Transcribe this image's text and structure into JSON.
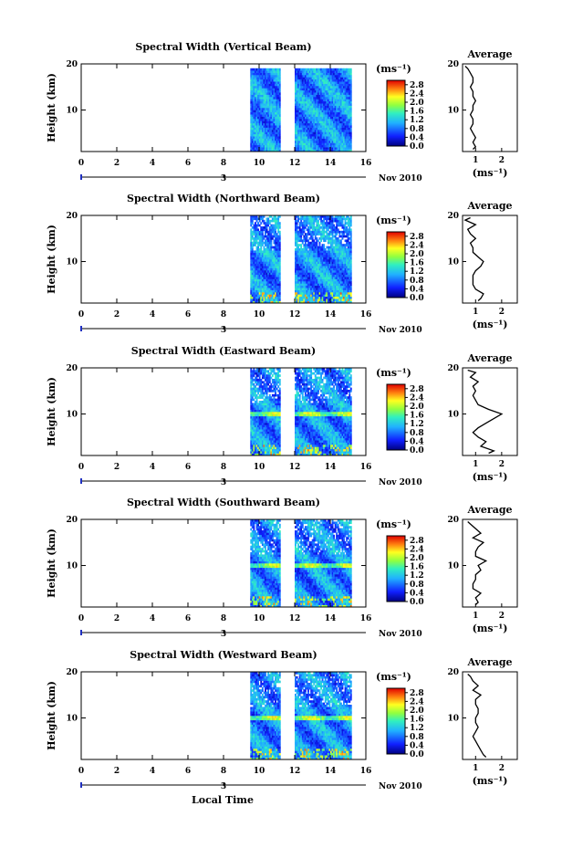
{
  "figure": {
    "xlabel": "Local Time",
    "date_label": "Nov 2010",
    "date_tick_label": "3",
    "colorbar_unit": "(ms⁻¹)",
    "avg_title": "Average",
    "avg_xlabel": "(ms⁻¹)",
    "ylabel": "Height (km)"
  },
  "chart_data": [
    {
      "type": "heatmap",
      "title": "Spectral Width (Vertical Beam)",
      "xlabel": "Local Time",
      "ylabel": "Height (km)",
      "x_ticks": [
        "0",
        "2",
        "4",
        "6",
        "8",
        "10",
        "12",
        "14",
        "16"
      ],
      "y_ticks": [
        "10",
        "20"
      ],
      "xlim": [
        0,
        16
      ],
      "ylim": [
        1,
        20
      ],
      "data_time_ranges": [
        [
          9.5,
          11.2
        ],
        [
          12.0,
          15.2
        ]
      ],
      "colorbar": {
        "ticks": [
          "0.0",
          "0.4",
          "0.8",
          "1.2",
          "1.6",
          "2.0",
          "2.4",
          "2.8"
        ],
        "range": [
          0,
          3.0
        ]
      },
      "average_profile": {
        "title": "Average",
        "xlabel": "(ms⁻¹)",
        "x_ticks": [
          "1",
          "2"
        ],
        "y_ticks": [
          "10",
          "20"
        ],
        "xlim": [
          0.5,
          2.6
        ],
        "heights": [
          1.5,
          2,
          3,
          4,
          5,
          6,
          7,
          8,
          9,
          10,
          11,
          12,
          13,
          14,
          15,
          16,
          17,
          18,
          19,
          19.5
        ],
        "values": [
          0.9,
          1.0,
          0.9,
          1.0,
          0.9,
          0.8,
          0.9,
          0.9,
          0.8,
          0.9,
          0.9,
          1.0,
          0.9,
          0.9,
          0.8,
          0.9,
          0.9,
          0.8,
          0.7,
          0.6
        ]
      }
    },
    {
      "type": "heatmap",
      "title": "Spectral Width (Northward Beam)",
      "xlabel": "Local Time",
      "ylabel": "Height (km)",
      "x_ticks": [
        "0",
        "2",
        "4",
        "6",
        "8",
        "10",
        "12",
        "14",
        "16"
      ],
      "y_ticks": [
        "10",
        "20"
      ],
      "xlim": [
        0,
        16
      ],
      "ylim": [
        1,
        20
      ],
      "data_time_ranges": [
        [
          9.5,
          11.2
        ],
        [
          12.0,
          15.2
        ]
      ],
      "colorbar": {
        "ticks": [
          "0.0",
          "0.4",
          "0.8",
          "1.2",
          "1.6",
          "2.0",
          "2.4",
          "2.8"
        ],
        "range": [
          0,
          3.0
        ]
      },
      "average_profile": {
        "title": "Average",
        "xlabel": "(ms⁻¹)",
        "x_ticks": [
          "1",
          "2"
        ],
        "y_ticks": [
          "10",
          "20"
        ],
        "xlim": [
          0.5,
          2.6
        ],
        "heights": [
          1.5,
          2,
          3,
          4,
          5,
          6,
          7,
          8,
          9,
          10,
          11,
          12,
          13,
          14,
          15,
          16,
          17,
          18,
          19,
          19.5
        ],
        "values": [
          1.1,
          1.2,
          1.3,
          1.0,
          0.9,
          0.9,
          0.9,
          1.0,
          1.2,
          1.3,
          1.1,
          0.9,
          0.9,
          0.8,
          1.0,
          0.8,
          0.7,
          1.0,
          0.6,
          0.8
        ]
      }
    },
    {
      "type": "heatmap",
      "title": "Spectral Width (Eastward Beam)",
      "xlabel": "Local Time",
      "ylabel": "Height (km)",
      "x_ticks": [
        "0",
        "2",
        "4",
        "6",
        "8",
        "10",
        "12",
        "14",
        "16"
      ],
      "y_ticks": [
        "10",
        "20"
      ],
      "xlim": [
        0,
        16
      ],
      "ylim": [
        1,
        20
      ],
      "data_time_ranges": [
        [
          9.5,
          11.2
        ],
        [
          12.0,
          15.2
        ]
      ],
      "colorbar": {
        "ticks": [
          "0.0",
          "0.4",
          "0.8",
          "1.2",
          "1.6",
          "2.0",
          "2.4",
          "2.8"
        ],
        "range": [
          0,
          3.0
        ]
      },
      "average_profile": {
        "title": "Average",
        "xlabel": "(ms⁻¹)",
        "x_ticks": [
          "1",
          "2"
        ],
        "y_ticks": [
          "10",
          "20"
        ],
        "xlim": [
          0.5,
          2.6
        ],
        "heights": [
          1.5,
          2,
          3,
          4,
          5,
          6,
          7,
          8,
          9,
          10,
          11,
          12,
          13,
          14,
          15,
          16,
          17,
          18,
          19,
          19.5
        ],
        "values": [
          1.5,
          1.7,
          1.2,
          1.4,
          1.1,
          0.9,
          1.1,
          1.4,
          1.7,
          2.0,
          1.5,
          1.1,
          1.0,
          0.9,
          1.0,
          0.9,
          1.1,
          0.8,
          1.0,
          0.7
        ]
      }
    },
    {
      "type": "heatmap",
      "title": "Spectral Width (Southward Beam)",
      "xlabel": "Local Time",
      "ylabel": "Height (km)",
      "x_ticks": [
        "0",
        "2",
        "4",
        "6",
        "8",
        "10",
        "12",
        "14",
        "16"
      ],
      "y_ticks": [
        "10",
        "20"
      ],
      "xlim": [
        0,
        16
      ],
      "ylim": [
        1,
        20
      ],
      "data_time_ranges": [
        [
          9.5,
          11.2
        ],
        [
          12.0,
          15.2
        ]
      ],
      "colorbar": {
        "ticks": [
          "0.0",
          "0.4",
          "0.8",
          "1.2",
          "1.6",
          "2.0",
          "2.4",
          "2.8"
        ],
        "range": [
          0,
          3.0
        ]
      },
      "average_profile": {
        "title": "Average",
        "xlabel": "(ms⁻¹)",
        "x_ticks": [
          "1",
          "2"
        ],
        "y_ticks": [
          "10",
          "20"
        ],
        "xlim": [
          0.5,
          2.6
        ],
        "heights": [
          1.5,
          2,
          3,
          4,
          5,
          6,
          7,
          8,
          9,
          10,
          11,
          12,
          13,
          14,
          15,
          16,
          17,
          18,
          19,
          19.5
        ],
        "values": [
          1.0,
          1.1,
          1.0,
          1.2,
          0.9,
          0.9,
          1.0,
          1.0,
          1.2,
          1.1,
          1.4,
          1.0,
          1.0,
          1.1,
          1.3,
          0.9,
          1.2,
          1.0,
          0.8,
          0.7
        ]
      }
    },
    {
      "type": "heatmap",
      "title": "Spectral Width (Westward Beam)",
      "xlabel": "Local Time",
      "ylabel": "Height (km)",
      "x_ticks": [
        "0",
        "2",
        "4",
        "6",
        "8",
        "10",
        "12",
        "14",
        "16"
      ],
      "y_ticks": [
        "10",
        "20"
      ],
      "xlim": [
        0,
        16
      ],
      "ylim": [
        1,
        20
      ],
      "data_time_ranges": [
        [
          9.5,
          11.2
        ],
        [
          12.0,
          15.2
        ]
      ],
      "colorbar": {
        "ticks": [
          "0.0",
          "0.4",
          "0.8",
          "1.2",
          "1.6",
          "2.0",
          "2.4",
          "2.8"
        ],
        "range": [
          0,
          3.0
        ]
      },
      "average_profile": {
        "title": "Average",
        "xlabel": "(ms⁻¹)",
        "x_ticks": [
          "1",
          "2"
        ],
        "y_ticks": [
          "10",
          "20"
        ],
        "xlim": [
          0.5,
          2.6
        ],
        "heights": [
          1.5,
          2,
          3,
          4,
          5,
          6,
          7,
          8,
          9,
          10,
          11,
          12,
          13,
          14,
          15,
          16,
          17,
          18,
          19,
          19.5
        ],
        "values": [
          1.4,
          1.3,
          1.2,
          1.1,
          1.0,
          0.9,
          1.0,
          1.1,
          1.0,
          1.0,
          1.1,
          1.1,
          1.0,
          1.0,
          1.2,
          0.9,
          1.1,
          0.9,
          0.8,
          0.7
        ]
      }
    }
  ]
}
